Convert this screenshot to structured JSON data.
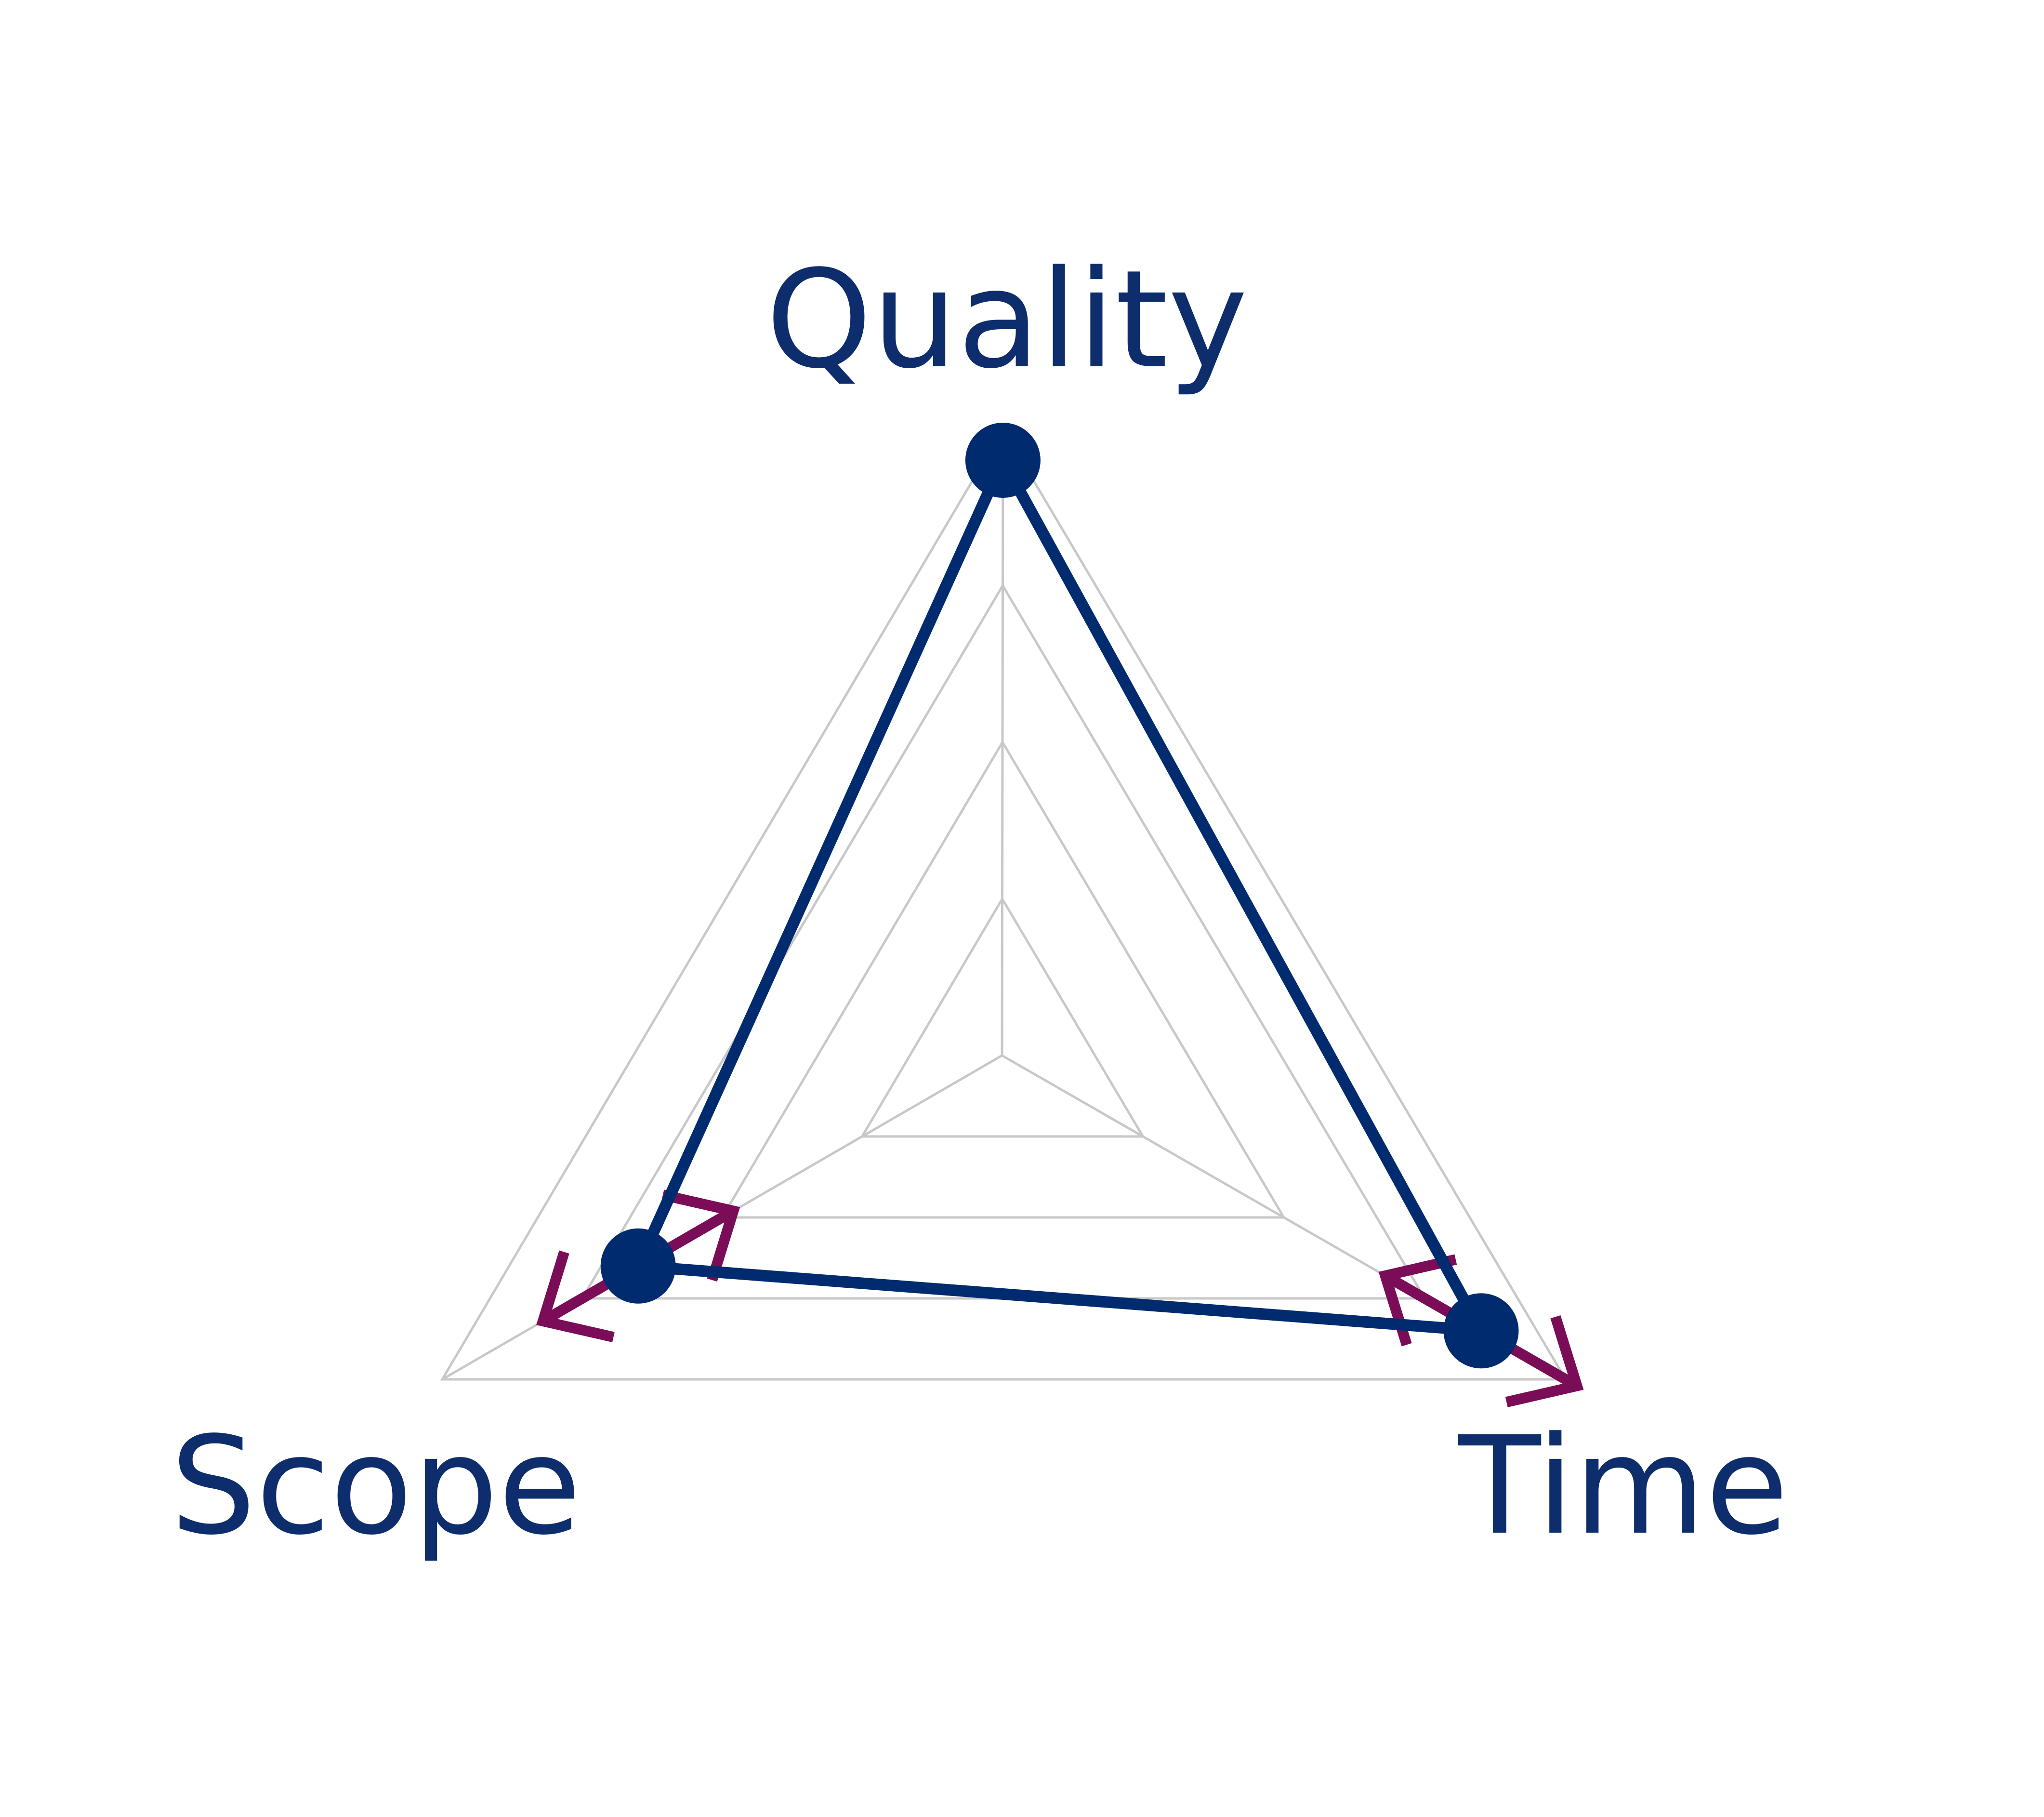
{
  "diagram": {
    "type": "radar-triangle",
    "axes": [
      {
        "key": "quality",
        "label": "Quality"
      },
      {
        "key": "scope",
        "label": "Scope"
      },
      {
        "key": "time",
        "label": "Time"
      }
    ],
    "grid_levels": 4,
    "current_values": {
      "quality": 0.95,
      "scope": 0.65,
      "time": 0.85
    },
    "adjustable_axes": [
      "scope",
      "time"
    ],
    "colors": {
      "label": "#0d2d6c",
      "outline": "#002b6f",
      "points": "#002b6f",
      "arrows": "#7b0c57",
      "grid": "#c8c8c8"
    }
  }
}
